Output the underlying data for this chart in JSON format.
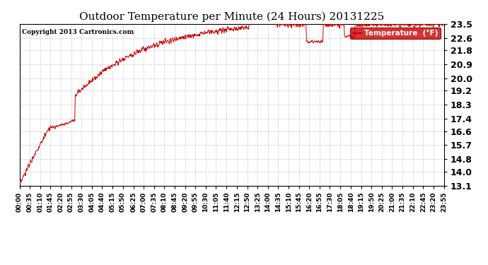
{
  "title": "Outdoor Temperature per Minute (24 Hours) 20131225",
  "copyright_text": "Copyright 2013 Cartronics.com",
  "legend_label": "Temperature  (°F)",
  "line_color": "#cc0000",
  "legend_bg": "#cc0000",
  "legend_text_color": "#ffffff",
  "background_color": "#ffffff",
  "grid_color": "#bbbbbb",
  "title_fontsize": 11,
  "ylabel_fontsize": 9,
  "xlabel_fontsize": 6.5,
  "ylim": [
    13.1,
    23.5
  ],
  "yticks": [
    13.1,
    14.0,
    14.8,
    15.7,
    16.6,
    17.4,
    18.3,
    19.2,
    20.0,
    20.9,
    21.8,
    22.6,
    23.5
  ],
  "xtick_labels": [
    "00:00",
    "00:35",
    "01:10",
    "01:45",
    "02:20",
    "02:55",
    "03:30",
    "04:05",
    "04:40",
    "05:15",
    "05:50",
    "06:25",
    "07:00",
    "07:35",
    "08:10",
    "08:45",
    "09:20",
    "09:55",
    "10:30",
    "11:05",
    "11:40",
    "12:15",
    "12:50",
    "13:25",
    "14:00",
    "14:35",
    "15:10",
    "15:45",
    "16:20",
    "16:55",
    "17:30",
    "18:05",
    "18:40",
    "19:15",
    "19:50",
    "20:25",
    "21:00",
    "21:35",
    "22:10",
    "22:45",
    "23:20",
    "23:55"
  ]
}
